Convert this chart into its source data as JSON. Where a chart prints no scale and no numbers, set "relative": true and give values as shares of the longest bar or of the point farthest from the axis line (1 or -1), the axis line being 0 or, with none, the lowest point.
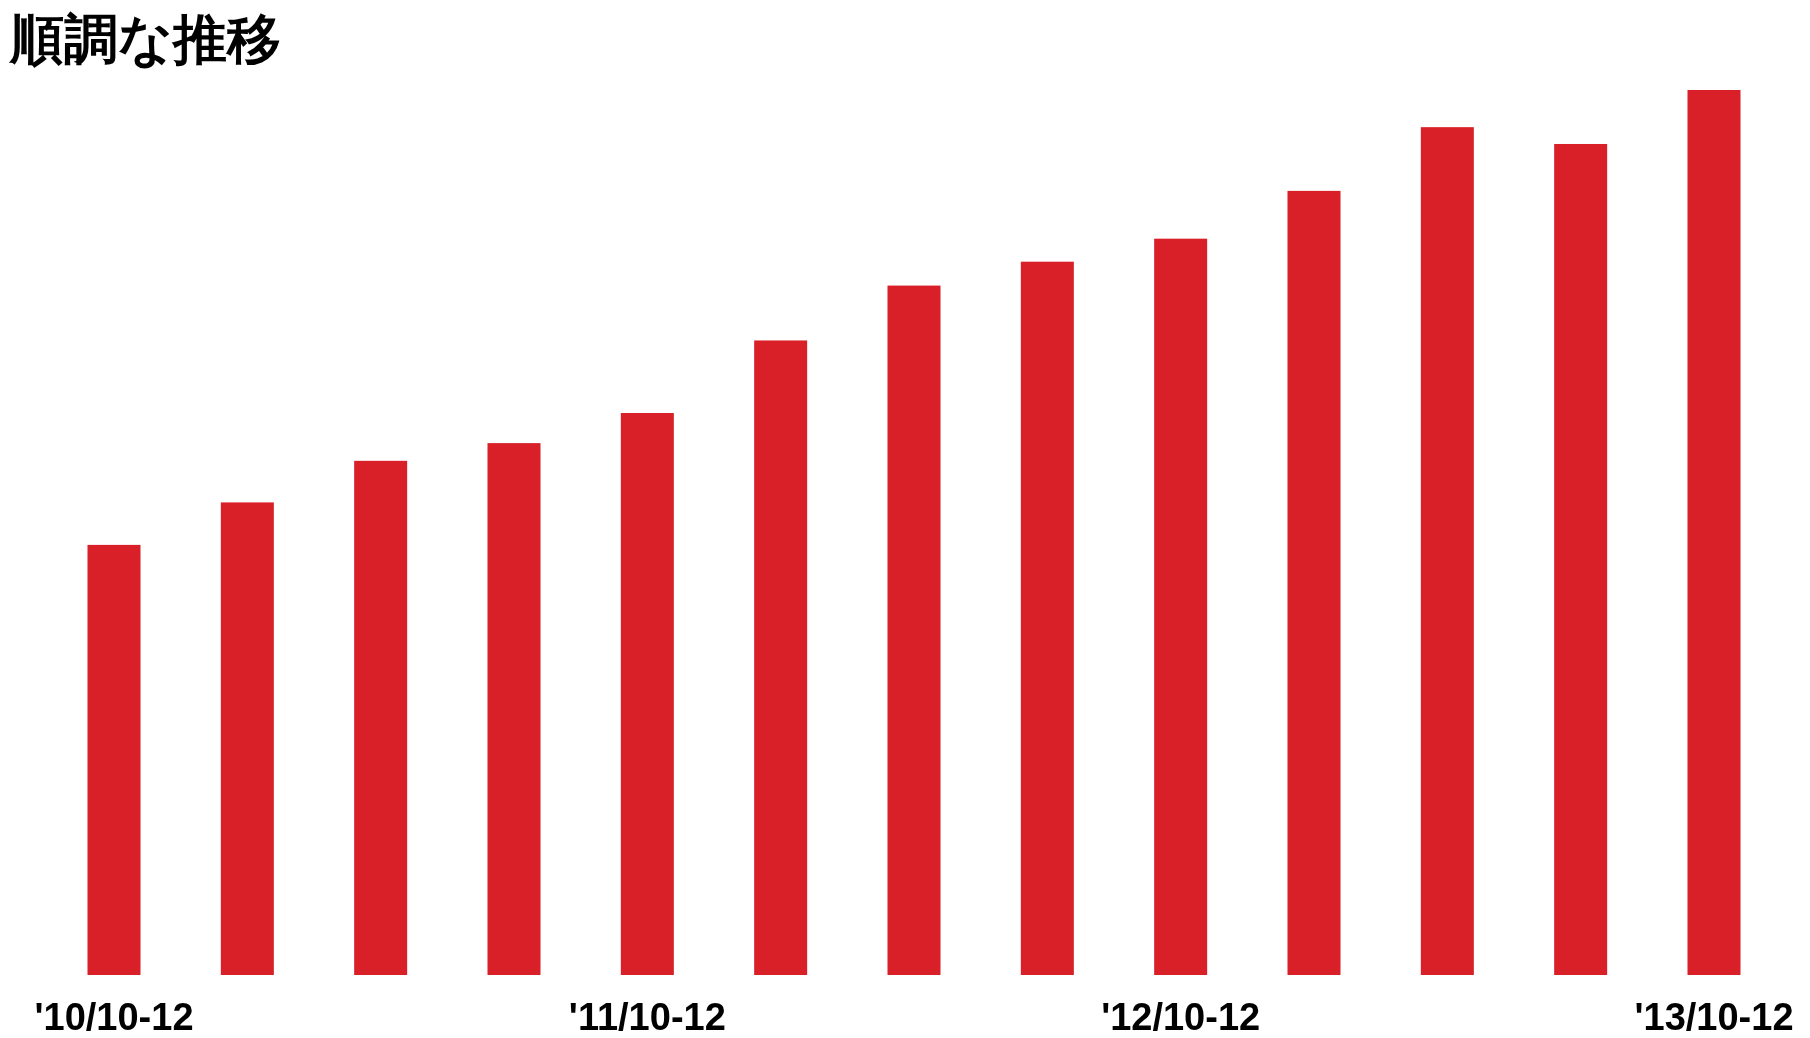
{
  "chart_data": {
    "type": "bar",
    "title": "順調な推移",
    "relative": true,
    "categories": [
      "'10/10-12",
      null,
      null,
      null,
      "'11/10-12",
      null,
      null,
      null,
      "'12/10-12",
      null,
      null,
      null,
      "'13/10-12"
    ],
    "series": [
      {
        "color": "#d91f28",
        "values": [
          0.486,
          0.534,
          0.581,
          0.601,
          0.635,
          0.717,
          0.779,
          0.806,
          0.832,
          0.886,
          0.958,
          0.939,
          1
        ]
      }
    ]
  }
}
